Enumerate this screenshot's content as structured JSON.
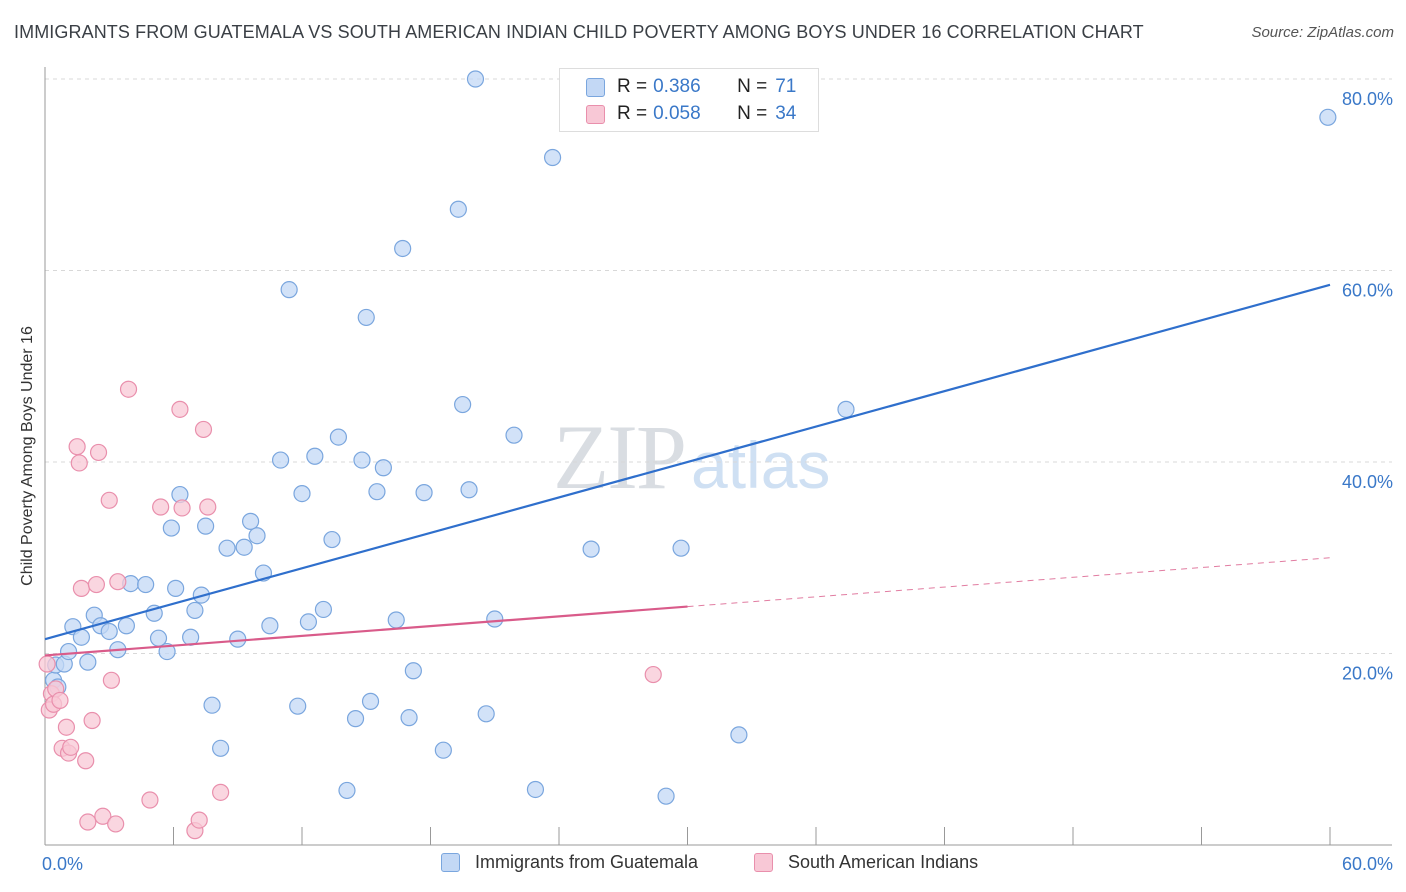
{
  "header": {
    "title": "IMMIGRANTS FROM GUATEMALA VS SOUTH AMERICAN INDIAN CHILD POVERTY AMONG BOYS UNDER 16 CORRELATION CHART",
    "source": "Source: ZipAtlas.com"
  },
  "watermark": {
    "zip": "ZIP",
    "atlas": "atlas"
  },
  "legend": {
    "rows": [
      {
        "r_label": "R = ",
        "r_value": "0.386",
        "n_label": "N = ",
        "n_value": "71"
      },
      {
        "r_label": "R = ",
        "r_value": "0.058",
        "n_label": "N = ",
        "n_value": "34"
      }
    ]
  },
  "bottom_legend": {
    "items": [
      "Immigrants from Guatemala",
      "South American Indians"
    ]
  },
  "colors": {
    "blue_fill": "#c3d8f5",
    "blue_stroke": "#7aa6de",
    "blue_line": "#2f6fcc",
    "pink_fill": "#f8c8d6",
    "pink_stroke": "#e98fac",
    "pink_line": "#d95b8a",
    "tick_label": "#3a78c8",
    "grid": "#d8d8d8"
  },
  "chart_data": {
    "type": "scatter",
    "title": "IMMIGRANTS FROM GUATEMALA VS SOUTH AMERICAN INDIAN CHILD POVERTY AMONG BOYS UNDER 16 CORRELATION CHART",
    "xlabel": "",
    "ylabel": "Child Poverty Among Boys Under 16",
    "xlim": [
      0,
      60
    ],
    "ylim": [
      0,
      80
    ],
    "x_tick_labels": [
      {
        "value": 0,
        "label": "0.0%"
      },
      {
        "value": 60,
        "label": "60.0%"
      }
    ],
    "y_tick_labels": [
      {
        "value": 20,
        "label": "20.0%"
      },
      {
        "value": 40,
        "label": "40.0%"
      },
      {
        "value": 60,
        "label": "60.0%"
      },
      {
        "value": 80,
        "label": "80.0%"
      }
    ],
    "grid": true,
    "legend_position": "top-center",
    "series": [
      {
        "name": "Immigrants from Guatemala",
        "r": 0.386,
        "n": 71,
        "trend": {
          "x": [
            0,
            60
          ],
          "y": [
            21.5,
            58.5
          ],
          "dashed_from": null
        },
        "points": [
          [
            0.4,
            17.2
          ],
          [
            0.5,
            18.8
          ],
          [
            0.6,
            16.5
          ],
          [
            0.9,
            18.9
          ],
          [
            1.1,
            20.2
          ],
          [
            1.3,
            22.8
          ],
          [
            1.7,
            21.7
          ],
          [
            2.0,
            19.1
          ],
          [
            2.3,
            24.0
          ],
          [
            2.6,
            22.9
          ],
          [
            3.0,
            22.3
          ],
          [
            3.4,
            20.4
          ],
          [
            3.8,
            22.9
          ],
          [
            4.0,
            27.3
          ],
          [
            4.7,
            27.2
          ],
          [
            5.1,
            24.2
          ],
          [
            5.3,
            21.6
          ],
          [
            5.7,
            20.2
          ],
          [
            5.9,
            33.1
          ],
          [
            6.1,
            26.8
          ],
          [
            6.3,
            36.6
          ],
          [
            6.8,
            21.7
          ],
          [
            7.0,
            24.5
          ],
          [
            7.3,
            26.1
          ],
          [
            7.5,
            33.3
          ],
          [
            7.8,
            14.6
          ],
          [
            8.2,
            10.1
          ],
          [
            8.5,
            31.0
          ],
          [
            9.0,
            21.5
          ],
          [
            9.3,
            31.1
          ],
          [
            9.6,
            33.8
          ],
          [
            9.9,
            32.3
          ],
          [
            10.2,
            28.4
          ],
          [
            10.5,
            22.9
          ],
          [
            11.0,
            40.2
          ],
          [
            11.4,
            58.0
          ],
          [
            11.8,
            14.5
          ],
          [
            12.0,
            36.7
          ],
          [
            12.3,
            23.3
          ],
          [
            12.6,
            40.6
          ],
          [
            13.0,
            24.6
          ],
          [
            13.4,
            31.9
          ],
          [
            13.7,
            42.6
          ],
          [
            14.1,
            5.7
          ],
          [
            14.5,
            13.2
          ],
          [
            14.8,
            40.2
          ],
          [
            15.0,
            55.1
          ],
          [
            15.2,
            15.0
          ],
          [
            15.5,
            36.9
          ],
          [
            15.8,
            39.4
          ],
          [
            16.4,
            23.5
          ],
          [
            16.7,
            62.3
          ],
          [
            17.0,
            13.3
          ],
          [
            17.2,
            18.2
          ],
          [
            17.7,
            36.8
          ],
          [
            18.6,
            9.9
          ],
          [
            19.3,
            66.4
          ],
          [
            19.5,
            46.0
          ],
          [
            19.8,
            37.1
          ],
          [
            20.1,
            80.0
          ],
          [
            20.6,
            13.7
          ],
          [
            21.0,
            23.6
          ],
          [
            21.9,
            42.8
          ],
          [
            22.9,
            5.8
          ],
          [
            23.7,
            71.8
          ],
          [
            25.5,
            30.9
          ],
          [
            29.0,
            5.1
          ],
          [
            29.7,
            31.0
          ],
          [
            32.4,
            11.5
          ],
          [
            37.4,
            45.5
          ],
          [
            59.9,
            76.0
          ]
        ]
      },
      {
        "name": "South American Indians",
        "r": 0.058,
        "n": 34,
        "trend": {
          "x": [
            0,
            60
          ],
          "y": [
            19.8,
            30.0
          ],
          "dashed_from": 30
        },
        "points": [
          [
            0.2,
            14.1
          ],
          [
            0.3,
            15.8
          ],
          [
            0.4,
            14.7
          ],
          [
            0.5,
            16.3
          ],
          [
            0.7,
            15.1
          ],
          [
            0.8,
            10.1
          ],
          [
            1.0,
            12.3
          ],
          [
            1.1,
            9.6
          ],
          [
            1.2,
            10.2
          ],
          [
            1.5,
            41.6
          ],
          [
            1.6,
            39.9
          ],
          [
            1.7,
            26.8
          ],
          [
            1.9,
            8.8
          ],
          [
            2.0,
            2.4
          ],
          [
            2.2,
            13.0
          ],
          [
            2.4,
            27.2
          ],
          [
            2.5,
            41.0
          ],
          [
            2.7,
            3.0
          ],
          [
            3.0,
            36.0
          ],
          [
            3.1,
            17.2
          ],
          [
            3.3,
            2.2
          ],
          [
            3.4,
            27.5
          ],
          [
            3.9,
            47.6
          ],
          [
            4.9,
            4.7
          ],
          [
            5.4,
            35.3
          ],
          [
            6.3,
            45.5
          ],
          [
            6.4,
            35.2
          ],
          [
            7.0,
            1.5
          ],
          [
            7.2,
            2.6
          ],
          [
            7.4,
            43.4
          ],
          [
            7.6,
            35.3
          ],
          [
            8.2,
            5.5
          ],
          [
            28.4,
            17.8
          ],
          [
            0.1,
            18.9
          ]
        ]
      }
    ]
  }
}
